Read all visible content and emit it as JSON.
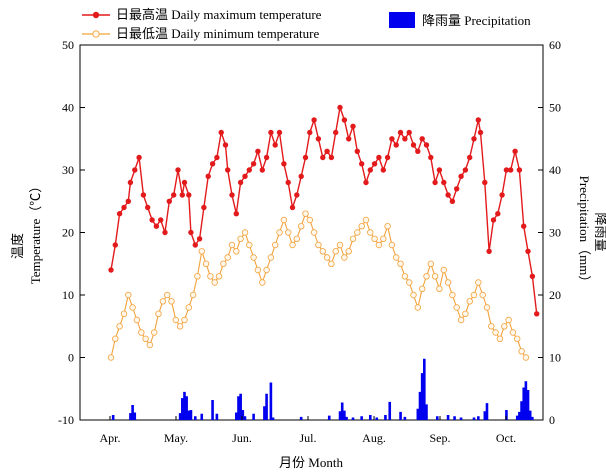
{
  "chart_data": {
    "type": "line",
    "x_categories": [
      "Apr.",
      "May.",
      "Jun.",
      "Jul.",
      "Aug.",
      "Sep.",
      "Oct."
    ],
    "xlabel": "月份  Month",
    "ylabel_left_cn": "温度",
    "ylabel_left_en": "Temperature（℃）",
    "ylabel_right_cn": "降雨量",
    "ylabel_right_en": "Precipitation（mm）",
    "ylim_left": [
      -10,
      50
    ],
    "ylim_right": [
      0,
      60
    ],
    "yticks_left": [
      "-10",
      "0",
      "10",
      "20",
      "30",
      "40",
      "50"
    ],
    "yticks_right": [
      "0",
      "10",
      "20",
      "30",
      "40",
      "50",
      "60"
    ],
    "legend": {
      "max": "日最高温  Daily maximum temperature",
      "min": "日最低温  Daily minimum temperature",
      "precip": "降雨量  Precipitation"
    },
    "series": [
      {
        "name": "Daily maximum temperature",
        "color": "#e31a1c",
        "day_range": [
          1,
          200
        ],
        "points": [
          [
            1,
            14
          ],
          [
            3,
            18
          ],
          [
            5,
            23
          ],
          [
            7,
            24
          ],
          [
            9,
            25
          ],
          [
            10,
            28
          ],
          [
            12,
            30
          ],
          [
            14,
            32
          ],
          [
            16,
            26
          ],
          [
            18,
            24
          ],
          [
            20,
            22
          ],
          [
            22,
            21
          ],
          [
            24,
            22
          ],
          [
            26,
            20
          ],
          [
            28,
            25
          ],
          [
            30,
            26
          ],
          [
            32,
            30
          ],
          [
            34,
            26
          ],
          [
            35,
            28
          ],
          [
            37,
            26
          ],
          [
            38,
            20
          ],
          [
            40,
            18
          ],
          [
            42,
            19
          ],
          [
            44,
            24
          ],
          [
            46,
            29
          ],
          [
            48,
            31
          ],
          [
            50,
            32
          ],
          [
            52,
            36
          ],
          [
            54,
            34
          ],
          [
            55,
            30
          ],
          [
            57,
            26
          ],
          [
            59,
            23
          ],
          [
            61,
            28
          ],
          [
            63,
            29
          ],
          [
            65,
            30
          ],
          [
            67,
            31
          ],
          [
            69,
            33
          ],
          [
            71,
            30
          ],
          [
            73,
            32
          ],
          [
            75,
            36
          ],
          [
            77,
            34
          ],
          [
            79,
            36
          ],
          [
            81,
            31
          ],
          [
            83,
            28
          ],
          [
            85,
            24
          ],
          [
            87,
            26
          ],
          [
            89,
            29
          ],
          [
            91,
            32
          ],
          [
            93,
            36
          ],
          [
            95,
            38
          ],
          [
            97,
            35
          ],
          [
            99,
            32
          ],
          [
            101,
            33
          ],
          [
            103,
            32
          ],
          [
            105,
            36
          ],
          [
            107,
            40
          ],
          [
            109,
            38
          ],
          [
            111,
            35
          ],
          [
            113,
            37
          ],
          [
            115,
            33
          ],
          [
            117,
            31
          ],
          [
            119,
            28
          ],
          [
            121,
            30
          ],
          [
            123,
            31
          ],
          [
            125,
            32
          ],
          [
            127,
            30
          ],
          [
            129,
            32
          ],
          [
            131,
            35
          ],
          [
            133,
            34
          ],
          [
            135,
            36
          ],
          [
            137,
            35
          ],
          [
            139,
            36
          ],
          [
            141,
            34
          ],
          [
            143,
            33
          ],
          [
            145,
            35
          ],
          [
            147,
            34
          ],
          [
            149,
            32
          ],
          [
            151,
            28
          ],
          [
            153,
            30
          ],
          [
            155,
            28
          ],
          [
            157,
            26
          ],
          [
            159,
            25
          ],
          [
            161,
            27
          ],
          [
            163,
            29
          ],
          [
            165,
            30
          ],
          [
            167,
            32
          ],
          [
            169,
            35
          ],
          [
            171,
            38
          ],
          [
            172,
            36
          ],
          [
            174,
            28
          ],
          [
            176,
            17
          ],
          [
            178,
            22
          ],
          [
            180,
            23
          ],
          [
            182,
            26
          ],
          [
            184,
            30
          ],
          [
            186,
            30
          ],
          [
            188,
            33
          ],
          [
            190,
            30
          ],
          [
            192,
            21
          ],
          [
            194,
            17
          ],
          [
            196,
            13
          ],
          [
            198,
            7
          ]
        ]
      },
      {
        "name": "Daily minimum temperature",
        "color": "#f2a23a",
        "day_range": [
          1,
          200
        ],
        "points": [
          [
            1,
            0
          ],
          [
            3,
            3
          ],
          [
            5,
            5
          ],
          [
            7,
            7
          ],
          [
            9,
            10
          ],
          [
            11,
            8
          ],
          [
            13,
            6
          ],
          [
            15,
            4
          ],
          [
            17,
            3
          ],
          [
            19,
            2
          ],
          [
            21,
            4
          ],
          [
            23,
            7
          ],
          [
            25,
            9
          ],
          [
            27,
            10
          ],
          [
            29,
            9
          ],
          [
            31,
            6
          ],
          [
            33,
            5
          ],
          [
            35,
            6
          ],
          [
            37,
            8
          ],
          [
            39,
            10
          ],
          [
            41,
            13
          ],
          [
            43,
            17
          ],
          [
            45,
            15
          ],
          [
            47,
            13
          ],
          [
            49,
            12
          ],
          [
            51,
            13
          ],
          [
            53,
            15
          ],
          [
            55,
            16
          ],
          [
            57,
            18
          ],
          [
            59,
            17
          ],
          [
            61,
            19
          ],
          [
            63,
            20
          ],
          [
            65,
            18
          ],
          [
            67,
            16
          ],
          [
            69,
            14
          ],
          [
            71,
            12
          ],
          [
            73,
            14
          ],
          [
            75,
            16
          ],
          [
            77,
            18
          ],
          [
            79,
            20
          ],
          [
            81,
            22
          ],
          [
            83,
            20
          ],
          [
            85,
            18
          ],
          [
            87,
            19
          ],
          [
            89,
            21
          ],
          [
            91,
            23
          ],
          [
            93,
            22
          ],
          [
            95,
            20
          ],
          [
            97,
            18
          ],
          [
            99,
            17
          ],
          [
            101,
            16
          ],
          [
            103,
            15
          ],
          [
            105,
            17
          ],
          [
            107,
            18
          ],
          [
            109,
            16
          ],
          [
            111,
            17
          ],
          [
            113,
            19
          ],
          [
            115,
            20
          ],
          [
            117,
            21
          ],
          [
            119,
            22
          ],
          [
            121,
            20
          ],
          [
            123,
            19
          ],
          [
            125,
            18
          ],
          [
            127,
            19
          ],
          [
            129,
            21
          ],
          [
            131,
            18
          ],
          [
            133,
            16
          ],
          [
            135,
            15
          ],
          [
            137,
            13
          ],
          [
            139,
            12
          ],
          [
            141,
            10
          ],
          [
            143,
            8
          ],
          [
            145,
            11
          ],
          [
            147,
            13
          ],
          [
            149,
            15
          ],
          [
            151,
            13
          ],
          [
            153,
            11
          ],
          [
            155,
            14
          ],
          [
            157,
            12
          ],
          [
            159,
            10
          ],
          [
            161,
            8
          ],
          [
            163,
            6
          ],
          [
            165,
            7
          ],
          [
            167,
            9
          ],
          [
            169,
            10
          ],
          [
            171,
            12
          ],
          [
            173,
            10
          ],
          [
            175,
            8
          ],
          [
            177,
            5
          ],
          [
            179,
            4
          ],
          [
            181,
            3
          ],
          [
            183,
            5
          ],
          [
            185,
            6
          ],
          [
            187,
            4
          ],
          [
            189,
            3
          ],
          [
            191,
            1
          ],
          [
            193,
            0
          ]
        ]
      },
      {
        "name": "Precipitation",
        "color": "#0000ee",
        "unit": "mm",
        "bars": [
          [
            2,
            0.8
          ],
          [
            10,
            1.1
          ],
          [
            11,
            2.4
          ],
          [
            12,
            1.2
          ],
          [
            33,
            1.1
          ],
          [
            34,
            3.5
          ],
          [
            35,
            4.5
          ],
          [
            36,
            3.8
          ],
          [
            37,
            1.5
          ],
          [
            38,
            1.6
          ],
          [
            40,
            0.6
          ],
          [
            43,
            1.0
          ],
          [
            48,
            3.2
          ],
          [
            50,
            1.0
          ],
          [
            59,
            1.2
          ],
          [
            60,
            3.8
          ],
          [
            61,
            4.2
          ],
          [
            62,
            1.6
          ],
          [
            63,
            0.6
          ],
          [
            67,
            1.0
          ],
          [
            72,
            2.2
          ],
          [
            73,
            4.2
          ],
          [
            75,
            6.0
          ],
          [
            76,
            0.4
          ],
          [
            89,
            0.5
          ],
          [
            102,
            0.7
          ],
          [
            107,
            1.4
          ],
          [
            108,
            2.8
          ],
          [
            109,
            1.5
          ],
          [
            110,
            0.5
          ],
          [
            113,
            0.4
          ],
          [
            117,
            0.6
          ],
          [
            121,
            0.8
          ],
          [
            124,
            0.4
          ],
          [
            128,
            0.8
          ],
          [
            130,
            2.9
          ],
          [
            135,
            1.3
          ],
          [
            137,
            0.5
          ],
          [
            143,
            1.8
          ],
          [
            144,
            4.5
          ],
          [
            145,
            7.5
          ],
          [
            146,
            9.8
          ],
          [
            147,
            2.5
          ],
          [
            152,
            0.6
          ],
          [
            157,
            0.8
          ],
          [
            160,
            0.6
          ],
          [
            163,
            0.4
          ],
          [
            169,
            0.4
          ],
          [
            171,
            0.6
          ],
          [
            174,
            1.4
          ],
          [
            175,
            2.7
          ],
          [
            184,
            1.6
          ],
          [
            189,
            0.7
          ],
          [
            190,
            1.3
          ],
          [
            191,
            3.0
          ],
          [
            192,
            5.2
          ],
          [
            193,
            6.2
          ],
          [
            194,
            4.8
          ],
          [
            195,
            1.5
          ],
          [
            196,
            0.5
          ]
        ]
      }
    ]
  }
}
